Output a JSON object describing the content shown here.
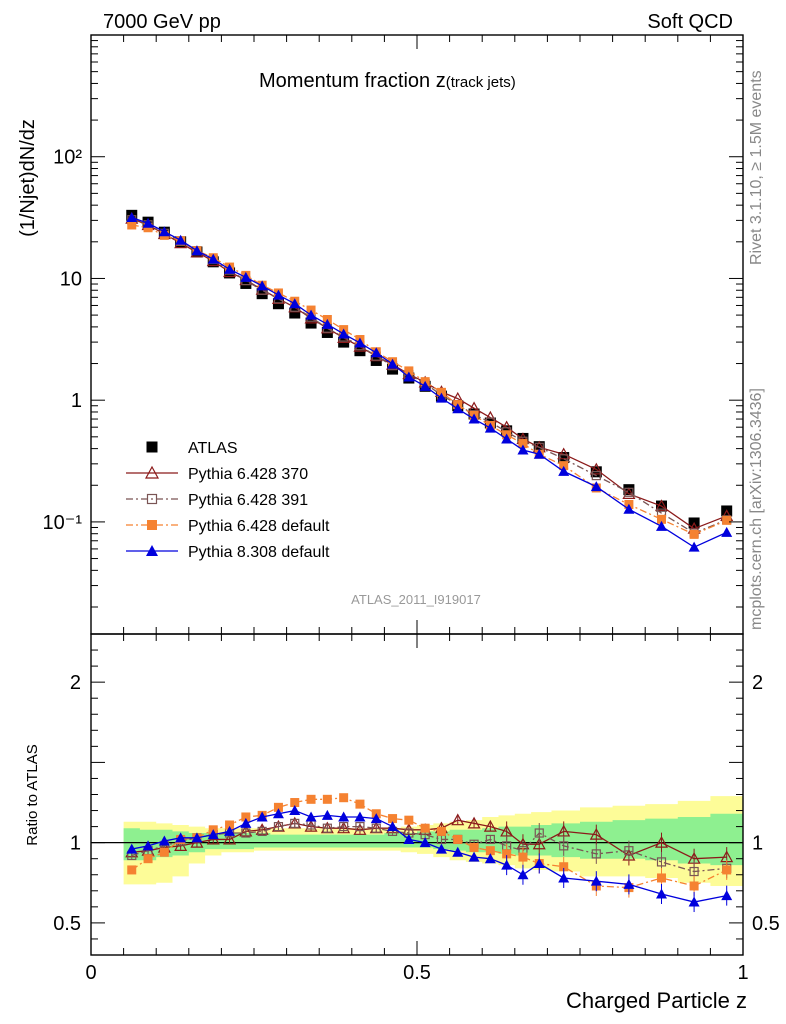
{
  "header": {
    "energy_label": "7000 GeV pp",
    "process_label": "Soft QCD",
    "side_label_rivet": "Rivet 3.1.10, ≥ 1.5M events",
    "side_label_source": "mcplots.cern.ch [arXiv:1306.3436]"
  },
  "chart_data": {
    "type": "line",
    "title_main": "Momentum fraction ",
    "title_var": "z",
    "title_sub": "(track jets)",
    "ylabel": "(1/Njet)dN/dz",
    "ratio_ylabel": "Ratio to ATLAS",
    "xlabel": "Charged Particle z",
    "analysis_tag": "ATLAS_2011_I919017",
    "xlim": [
      0,
      1
    ],
    "ylim": [
      0.012,
      1000
    ],
    "ylog": true,
    "ratio_ylim": [
      0.3,
      2.3
    ],
    "x_ticks": [
      "0",
      "0.5",
      "1"
    ],
    "y_ticks": [
      "10⁻¹",
      "1",
      "10",
      "10²"
    ],
    "ratio_ticks": [
      "0.5",
      "1",
      "2"
    ],
    "legend_position": "center-left",
    "x": [
      0.0625,
      0.0875,
      0.1125,
      0.1375,
      0.1625,
      0.1875,
      0.2125,
      0.2375,
      0.2625,
      0.2875,
      0.3125,
      0.3375,
      0.3625,
      0.3875,
      0.4125,
      0.4375,
      0.4625,
      0.4875,
      0.5125,
      0.5375,
      0.5625,
      0.5875,
      0.6125,
      0.6375,
      0.6625,
      0.6875,
      0.725,
      0.775,
      0.825,
      0.875,
      0.925,
      0.975
    ],
    "band_outer": {
      "lo": [
        0.74,
        0.74,
        0.75,
        0.79,
        0.87,
        0.92,
        0.94,
        0.94,
        0.95,
        0.95,
        0.95,
        0.95,
        0.95,
        0.95,
        0.95,
        0.95,
        0.95,
        0.94,
        0.93,
        0.91,
        0.89,
        0.88,
        0.87,
        0.86,
        0.84,
        0.83,
        0.82,
        0.79,
        0.79,
        0.78,
        0.75,
        0.73
      ],
      "hi": [
        1.13,
        1.13,
        1.12,
        1.11,
        1.1,
        1.09,
        1.09,
        1.09,
        1.09,
        1.09,
        1.09,
        1.09,
        1.09,
        1.09,
        1.09,
        1.09,
        1.09,
        1.1,
        1.11,
        1.12,
        1.13,
        1.14,
        1.16,
        1.17,
        1.18,
        1.19,
        1.2,
        1.22,
        1.23,
        1.24,
        1.26,
        1.29
      ]
    },
    "band_inner": {
      "lo": [
        0.89,
        0.89,
        0.91,
        0.92,
        0.94,
        0.96,
        0.96,
        0.96,
        0.97,
        0.97,
        0.97,
        0.97,
        0.97,
        0.97,
        0.97,
        0.97,
        0.97,
        0.97,
        0.97,
        0.96,
        0.95,
        0.94,
        0.94,
        0.93,
        0.92,
        0.92,
        0.91,
        0.9,
        0.9,
        0.89,
        0.87,
        0.86
      ],
      "hi": [
        1.09,
        1.08,
        1.08,
        1.07,
        1.06,
        1.06,
        1.06,
        1.06,
        1.06,
        1.05,
        1.05,
        1.05,
        1.05,
        1.05,
        1.05,
        1.05,
        1.06,
        1.06,
        1.07,
        1.07,
        1.08,
        1.08,
        1.09,
        1.1,
        1.1,
        1.11,
        1.12,
        1.13,
        1.14,
        1.15,
        1.16,
        1.18
      ]
    },
    "series": [
      {
        "name": "ATLAS",
        "color": "#000000",
        "marker": "filled-square",
        "line": "none",
        "values": [
          33,
          29,
          24,
          20,
          16.5,
          13.7,
          11.1,
          9.1,
          7.5,
          6.2,
          5.2,
          4.3,
          3.6,
          3.0,
          2.55,
          2.12,
          1.8,
          1.52,
          1.3,
          1.08,
          0.9,
          0.77,
          0.65,
          0.56,
          0.485,
          0.415,
          0.338,
          0.258,
          0.184,
          0.135,
          0.098,
          0.123
        ]
      },
      {
        "name": "Pythia 6.428 370",
        "color": "#8b1a1a",
        "marker": "open-triangle",
        "line": "solid",
        "values": [
          31,
          27.5,
          23.2,
          19.5,
          16.4,
          13.9,
          11.3,
          9.7,
          8.1,
          6.8,
          5.8,
          4.7,
          3.9,
          3.25,
          2.75,
          2.3,
          1.96,
          1.64,
          1.4,
          1.17,
          1.03,
          0.86,
          0.72,
          0.6,
          0.48,
          0.41,
          0.36,
          0.27,
          0.17,
          0.135,
          0.088,
          0.112
        ]
      },
      {
        "name": "Pythia 6.428 391",
        "color": "#7a5555",
        "marker": "open-square",
        "line": "dashdot",
        "values": [
          30.4,
          27.6,
          23.5,
          20.2,
          16.9,
          14.3,
          11.7,
          9.6,
          8.0,
          6.8,
          5.8,
          4.8,
          3.9,
          3.3,
          2.8,
          2.3,
          1.92,
          1.62,
          1.37,
          1.1,
          0.92,
          0.76,
          0.66,
          0.55,
          0.46,
          0.41,
          0.33,
          0.24,
          0.175,
          0.118,
          0.081,
          0.104
        ]
      },
      {
        "name": "Pythia 6.428 default",
        "color": "#f58231",
        "marker": "filled-square",
        "line": "dashdot",
        "values": [
          27.5,
          26.1,
          22.6,
          20.4,
          16.9,
          14.8,
          12.4,
          10.6,
          8.8,
          7.6,
          6.5,
          5.5,
          4.6,
          3.8,
          3.15,
          2.5,
          2.07,
          1.74,
          1.42,
          1.16,
          0.92,
          0.75,
          0.62,
          0.52,
          0.44,
          0.36,
          0.29,
          0.19,
          0.139,
          0.105,
          0.079,
          0.103
        ]
      },
      {
        "name": "Pythia 8.308 default",
        "color": "#0000dd",
        "marker": "filled-triangle",
        "line": "solid",
        "values": [
          31.7,
          28.4,
          24.2,
          20.6,
          16.9,
          14.4,
          11.9,
          10.2,
          8.7,
          7.3,
          6.2,
          5.0,
          4.2,
          3.5,
          2.95,
          2.45,
          1.98,
          1.55,
          1.3,
          1.04,
          0.85,
          0.7,
          0.59,
          0.48,
          0.39,
          0.36,
          0.26,
          0.195,
          0.127,
          0.092,
          0.062,
          0.082
        ]
      }
    ],
    "ratio_series": [
      {
        "name": "Pythia 6.428 370",
        "values": [
          0.94,
          0.95,
          0.97,
          0.98,
          1.0,
          1.02,
          1.02,
          1.07,
          1.08,
          1.1,
          1.12,
          1.1,
          1.09,
          1.09,
          1.08,
          1.09,
          1.09,
          1.08,
          1.08,
          1.09,
          1.14,
          1.12,
          1.1,
          1.07,
          0.99,
          0.99,
          1.07,
          1.05,
          0.92,
          1.0,
          0.9,
          0.91
        ]
      },
      {
        "name": "Pythia 6.428 391",
        "values": [
          0.92,
          0.95,
          0.98,
          1.01,
          1.03,
          1.05,
          1.06,
          1.06,
          1.07,
          1.1,
          1.12,
          1.11,
          1.09,
          1.1,
          1.1,
          1.09,
          1.07,
          1.06,
          1.05,
          1.02,
          1.02,
          0.99,
          1.02,
          0.98,
          0.95,
          1.06,
          0.98,
          0.93,
          0.95,
          0.88,
          0.82,
          0.84
        ]
      },
      {
        "name": "Pythia 6.428 default",
        "values": [
          0.83,
          0.9,
          0.94,
          1.02,
          1.03,
          1.08,
          1.11,
          1.16,
          1.17,
          1.22,
          1.25,
          1.27,
          1.27,
          1.28,
          1.24,
          1.18,
          1.15,
          1.14,
          1.09,
          1.07,
          1.02,
          0.97,
          0.95,
          0.93,
          0.91,
          0.87,
          0.85,
          0.73,
          0.72,
          0.78,
          0.73,
          0.83
        ]
      },
      {
        "name": "Pythia 8.308 default",
        "values": [
          0.96,
          0.98,
          1.01,
          1.03,
          1.03,
          1.05,
          1.07,
          1.12,
          1.16,
          1.18,
          1.2,
          1.16,
          1.17,
          1.16,
          1.16,
          1.15,
          1.1,
          1.02,
          1.0,
          0.96,
          0.94,
          0.91,
          0.9,
          0.86,
          0.8,
          0.87,
          0.78,
          0.76,
          0.74,
          0.68,
          0.63,
          0.67
        ]
      }
    ]
  }
}
